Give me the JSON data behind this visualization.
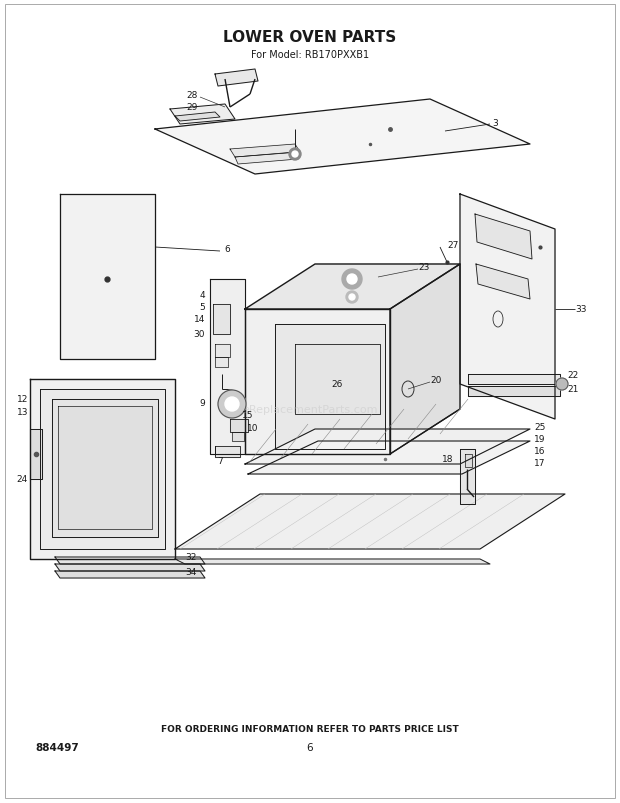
{
  "title": "LOWER OVEN PARTS",
  "subtitle": "For Model: RB170PXXB1",
  "footer": "FOR ORDERING INFORMATION REFER TO PARTS PRICE LIST",
  "page_num": "6",
  "part_num": "884497",
  "bg_color": "#ffffff",
  "text_color": "#1a1a1a",
  "line_color": "#1a1a1a",
  "watermark": "eReplacementParts.com",
  "figsize": [
    6.2,
    8.04
  ],
  "dpi": 100
}
